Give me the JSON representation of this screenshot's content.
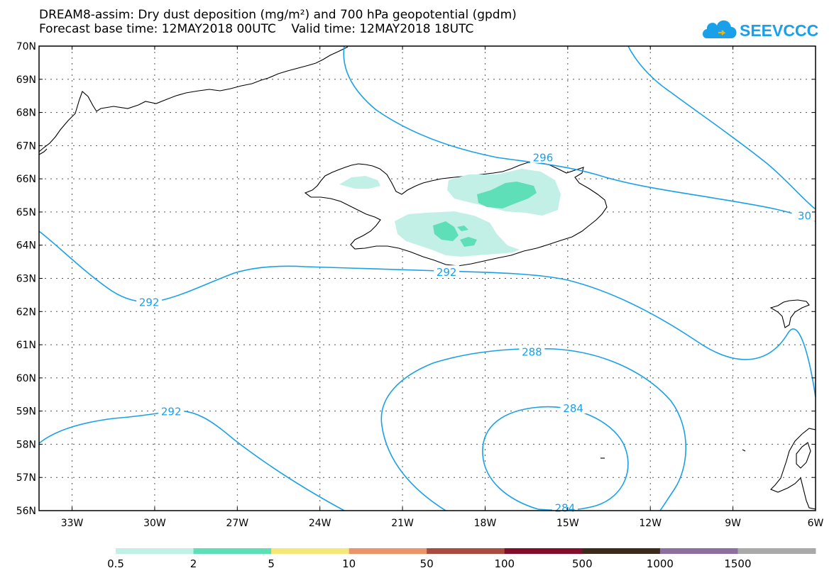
{
  "header": {
    "title_line1": "DREAM8-assim: Dry dust deposition (mg/m²) and 700 hPa geopotential (gpdm)",
    "title_line2": "Forecast base time: 12MAY2018 00UTC    Valid time: 12MAY2018 18UTC",
    "logo_text": "SEEVCCC",
    "logo_color": "#1aa0e8"
  },
  "map": {
    "lat_range": [
      56,
      70
    ],
    "lon_range": [
      -34.2,
      -6
    ],
    "lat_ticks": [
      "56N",
      "57N",
      "58N",
      "59N",
      "60N",
      "61N",
      "62N",
      "63N",
      "64N",
      "65N",
      "66N",
      "67N",
      "68N",
      "69N",
      "70N"
    ],
    "lon_ticks": [
      {
        "lon": -33,
        "label": "33W"
      },
      {
        "lon": -30,
        "label": "30W"
      },
      {
        "lon": -27,
        "label": "27W"
      },
      {
        "lon": -24,
        "label": "24W"
      },
      {
        "lon": -21,
        "label": "21W"
      },
      {
        "lon": -18,
        "label": "18W"
      },
      {
        "lon": -15,
        "label": "15W"
      },
      {
        "lon": -12,
        "label": "12W"
      },
      {
        "lon": -9,
        "label": "9W"
      },
      {
        "lon": -6,
        "label": "6W"
      }
    ],
    "contour_color": "#1aa0e8",
    "contour_labels": [
      {
        "text": "296",
        "lon": -15.9,
        "lat": 66.65
      },
      {
        "text": "30",
        "lon": -6.4,
        "lat": 64.9
      },
      {
        "text": "292",
        "lon": -30.2,
        "lat": 62.3
      },
      {
        "text": "292",
        "lon": -19.4,
        "lat": 63.2
      },
      {
        "text": "288",
        "lon": -16.3,
        "lat": 60.8
      },
      {
        "text": "292",
        "lon": -29.4,
        "lat": 59.0
      },
      {
        "text": "284",
        "lon": -14.8,
        "lat": 59.1
      },
      {
        "text": "284",
        "lon": -15.1,
        "lat": 56.1
      }
    ],
    "deposition_colors": {
      "low": "#c2f0e6",
      "mid": "#5fdfb7"
    }
  },
  "legend": {
    "labels": [
      "0.5",
      "2",
      "5",
      "10",
      "50",
      "100",
      "500",
      "1000",
      "1500"
    ],
    "colors": [
      "#c2f0e6",
      "#5fdfb7",
      "#f5e87a",
      "#e99469",
      "#a84b40",
      "#820e2c",
      "#3e2a1a",
      "#8e6e9e",
      "#a9a9a9"
    ]
  }
}
